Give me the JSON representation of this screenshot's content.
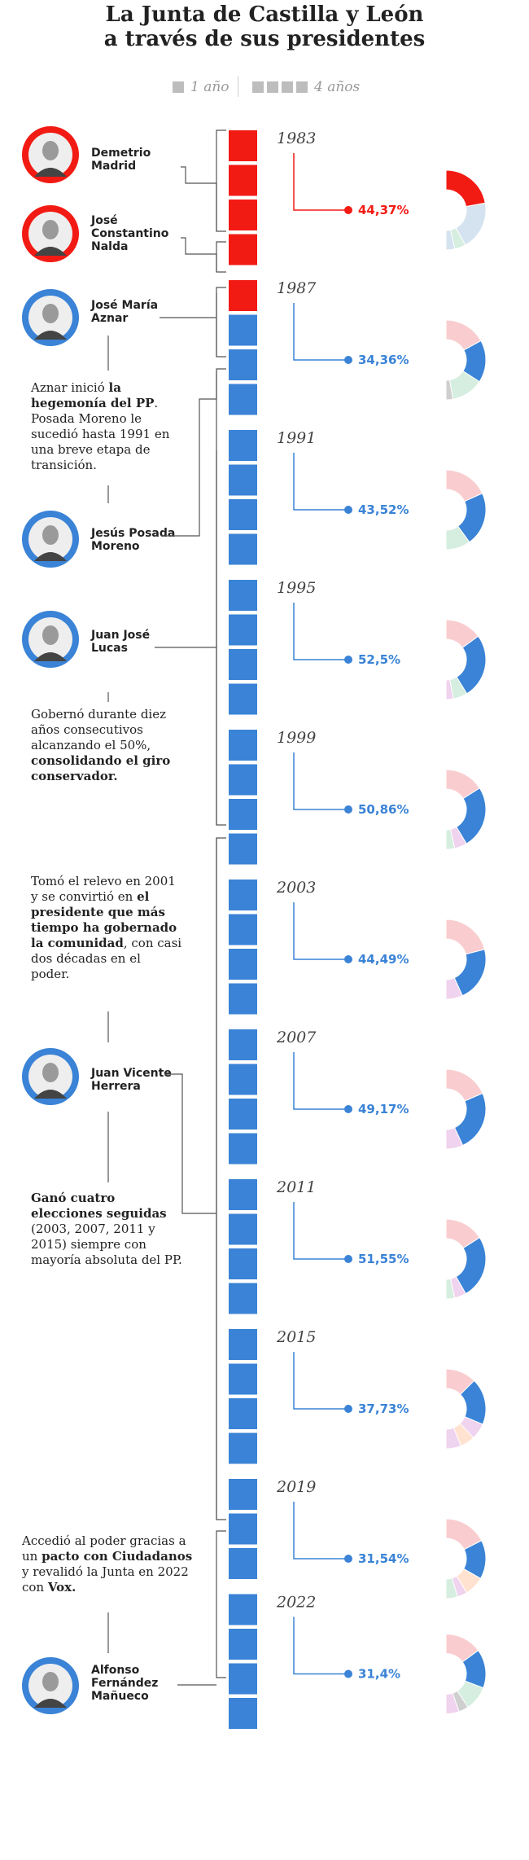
{
  "title_lines": [
    "La Junta de Castilla y León",
    "a través de sus presidentes"
  ],
  "legend": {
    "one_year": "1 año",
    "four_years": "4 años"
  },
  "colors": {
    "psoe": "#f21b14",
    "pp": "#3a83d6",
    "pink": "#f9cdcf",
    "light_blue": "#d4e3ef",
    "green": "#d5eedf",
    "lilac": "#f0d3ee",
    "grey": "#cfcfcf"
  },
  "presidents": [
    {
      "id": "demetrio",
      "name_lines": [
        "Demetrio",
        "Madrid"
      ],
      "party": "PSOE",
      "years": 4
    },
    {
      "id": "nalda",
      "name_lines": [
        "José",
        "Constantino",
        "Nalda"
      ],
      "party": "PSOE",
      "years": 1
    },
    {
      "id": "aznar",
      "name_lines": [
        "José María",
        "Aznar"
      ],
      "party": "PP",
      "years": 2
    },
    {
      "id": "posada",
      "name_lines": [
        "Jesús Posada",
        "Moreno"
      ],
      "party": "PP",
      "years": 2
    },
    {
      "id": "lucas",
      "name_lines": [
        "Juan José",
        "Lucas"
      ],
      "party": "PP",
      "years": 10
    },
    {
      "id": "herrera",
      "name_lines": [
        "Juan Vicente",
        "Herrera"
      ],
      "party": "PP",
      "years": 18
    },
    {
      "id": "manueco",
      "name_lines": [
        "Alfonso",
        "Fernández",
        "Mañueco"
      ],
      "party": "PP",
      "years": 8
    }
  ],
  "paragraphs": [
    {
      "id": "p-aznar",
      "segments": [
        {
          "t": "Aznar inició ",
          "b": false
        },
        {
          "t": "la hegemonía del PP",
          "b": true
        },
        {
          "t": ". Posada Moreno le sucedió hasta 1991 en una breve etapa de transición.",
          "b": false
        }
      ]
    },
    {
      "id": "p-lucas",
      "segments": [
        {
          "t": "Gobernó durante diez años consecutivos alcanzando el 50%, ",
          "b": false
        },
        {
          "t": "consolidando el giro conservador.",
          "b": true
        }
      ]
    },
    {
      "id": "p-herrera-1",
      "segments": [
        {
          "t": "Tomó el relevo en 2001 y se convirtió en ",
          "b": false
        },
        {
          "t": "el presidente que más tiempo ha gobernado la comunidad",
          "b": true
        },
        {
          "t": ", con casi dos décadas en el poder.",
          "b": false
        }
      ]
    },
    {
      "id": "p-herrera-2",
      "segments": [
        {
          "t": "Ganó cuatro elecciones seguidas",
          "b": true
        },
        {
          "t": " (2003, 2007, 2011 y 2015) siempre con mayoría absoluta del PP.",
          "b": false
        }
      ]
    },
    {
      "id": "p-manueco",
      "segments": [
        {
          "t": "Accedió al poder gracias a un ",
          "b": false
        },
        {
          "t": "pacto con Ciudadanos",
          "b": true
        },
        {
          "t": " y revalidó la Junta en 2022 con ",
          "b": false
        },
        {
          "t": "Vox.",
          "b": true
        }
      ]
    }
  ],
  "chart_data": {
    "type": "timeline-donut",
    "timeline_years": [
      1983,
      1984,
      1985,
      1986,
      1987,
      1988,
      1989,
      1990,
      1991,
      1992,
      1993,
      1994,
      1995,
      1996,
      1997,
      1998,
      1999,
      2000,
      2001,
      2002,
      2003,
      2004,
      2005,
      2006,
      2007,
      2008,
      2009,
      2010,
      2011,
      2012,
      2013,
      2014,
      2015,
      2016,
      2017,
      2018,
      2019,
      2020,
      2021,
      2022,
      2023,
      2024,
      2025
    ],
    "elections": [
      {
        "year": "1983",
        "winner": "PSOE",
        "winner_pct": 44.37,
        "pct_label": "44,37%",
        "slices": [
          {
            "v": 44.37,
            "c": "#f21b14"
          },
          {
            "v": 39.5,
            "c": "#d4e3ef"
          },
          {
            "v": 9,
            "c": "#d5eedf"
          },
          {
            "v": 7.13,
            "c": "#d4e3ef"
          }
        ]
      },
      {
        "year": "1987",
        "winner": "PP",
        "winner_pct": 34.36,
        "pct_label": "34,36%",
        "slices": [
          {
            "v": 34.0,
            "c": "#f9cdcf"
          },
          {
            "v": 34.36,
            "c": "#3a83d6"
          },
          {
            "v": 26,
            "c": "#d5eedf"
          },
          {
            "v": 5.64,
            "c": "#cfcfcf"
          }
        ]
      },
      {
        "year": "1991",
        "winner": "PP",
        "winner_pct": 43.52,
        "pct_label": "43,52%",
        "slices": [
          {
            "v": 36.5,
            "c": "#f9cdcf"
          },
          {
            "v": 43.52,
            "c": "#3a83d6"
          },
          {
            "v": 19.98,
            "c": "#d5eedf"
          }
        ]
      },
      {
        "year": "1995",
        "winner": "PP",
        "winner_pct": 52.5,
        "pct_label": "52,5%",
        "slices": [
          {
            "v": 30,
            "c": "#f9cdcf"
          },
          {
            "v": 52.5,
            "c": "#3a83d6"
          },
          {
            "v": 11.5,
            "c": "#d5eedf"
          },
          {
            "v": 6,
            "c": "#f0d3ee"
          }
        ]
      },
      {
        "year": "1999",
        "winner": "PP",
        "winner_pct": 50.86,
        "pct_label": "50,86%",
        "slices": [
          {
            "v": 32,
            "c": "#f9cdcf"
          },
          {
            "v": 50.86,
            "c": "#3a83d6"
          },
          {
            "v": 10.14,
            "c": "#f0d3ee"
          },
          {
            "v": 7,
            "c": "#d5eedf"
          }
        ]
      },
      {
        "year": "2003",
        "winner": "PP",
        "winner_pct": 44.49,
        "pct_label": "44,49%",
        "slices": [
          {
            "v": 42,
            "c": "#f9cdcf"
          },
          {
            "v": 44.49,
            "c": "#3a83d6"
          },
          {
            "v": 13.51,
            "c": "#f0d3ee"
          }
        ]
      },
      {
        "year": "2007",
        "winner": "PP",
        "winner_pct": 49.17,
        "pct_label": "49,17%",
        "slices": [
          {
            "v": 37,
            "c": "#f9cdcf"
          },
          {
            "v": 49.17,
            "c": "#3a83d6"
          },
          {
            "v": 13.83,
            "c": "#f0d3ee"
          }
        ]
      },
      {
        "year": "2011",
        "winner": "PP",
        "winner_pct": 51.55,
        "pct_label": "51,55%",
        "slices": [
          {
            "v": 32,
            "c": "#f9cdcf"
          },
          {
            "v": 51.55,
            "c": "#3a83d6"
          },
          {
            "v": 9.45,
            "c": "#f0d3ee"
          },
          {
            "v": 7,
            "c": "#d5eedf"
          }
        ]
      },
      {
        "year": "2015",
        "winner": "PP",
        "winner_pct": 37.73,
        "pct_label": "37,73%",
        "slices": [
          {
            "v": 25,
            "c": "#f9cdcf"
          },
          {
            "v": 37.73,
            "c": "#3a83d6"
          },
          {
            "v": 13,
            "c": "#f0d3ee"
          },
          {
            "v": 12,
            "c": "#ffe2cf"
          },
          {
            "v": 12.27,
            "c": "#f0d3ee"
          }
        ]
      },
      {
        "year": "2019",
        "winner": "PP",
        "winner_pct": 31.54,
        "pct_label": "31,54%",
        "slices": [
          {
            "v": 35,
            "c": "#f9cdcf"
          },
          {
            "v": 31.54,
            "c": "#3a83d6"
          },
          {
            "v": 16,
            "c": "#ffe2cf"
          },
          {
            "v": 8,
            "c": "#f0d3ee"
          },
          {
            "v": 9.46,
            "c": "#d5eedf"
          }
        ]
      },
      {
        "year": "2022",
        "winner": "PP",
        "winner_pct": 31.4,
        "pct_label": "31,4%",
        "slices": [
          {
            "v": 30,
            "c": "#f9cdcf"
          },
          {
            "v": 31.4,
            "c": "#3a83d6"
          },
          {
            "v": 20,
            "c": "#d5eedf"
          },
          {
            "v": 8,
            "c": "#cfcfcf"
          },
          {
            "v": 10.6,
            "c": "#f0d3ee"
          }
        ]
      }
    ]
  }
}
